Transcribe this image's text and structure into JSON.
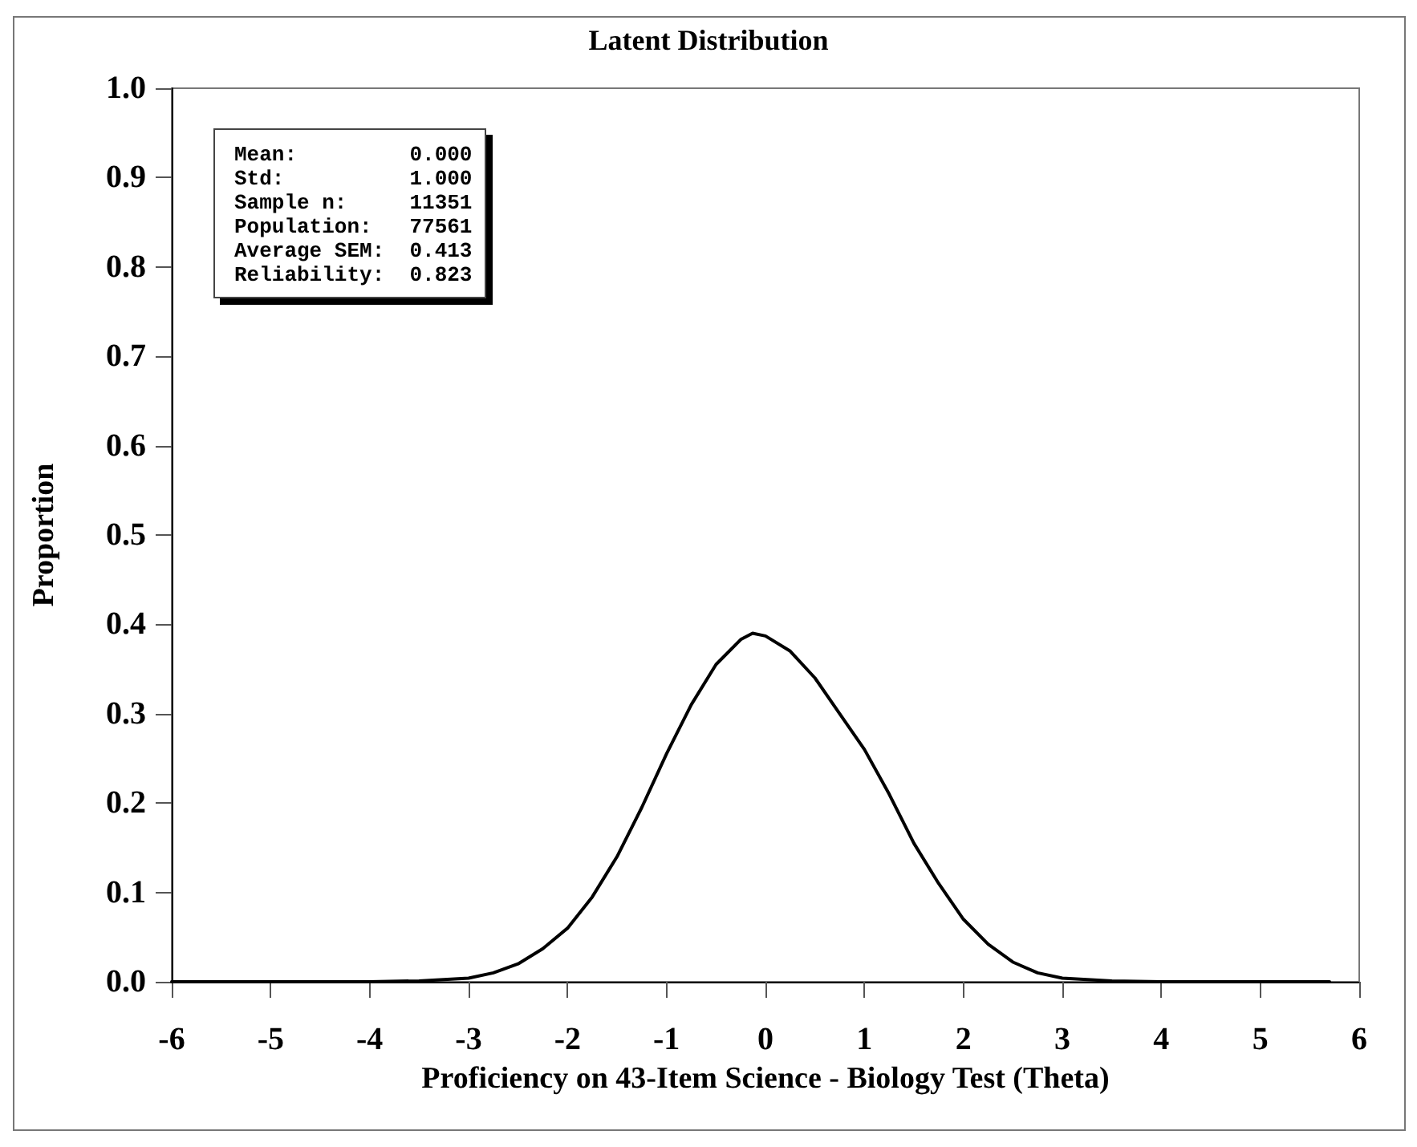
{
  "chart_data": {
    "type": "line",
    "title": "Latent Distribution",
    "xlabel": "Proficiency on 43-Item Science - Biology Test (Theta)",
    "ylabel": "Proportion",
    "annotations": [
      "Mean:         0.000",
      "Std:          1.000",
      "Sample n:     11351",
      "Population:   77561",
      "Average SEM:  0.413",
      "Reliability:  0.823"
    ],
    "x": [
      -6,
      -5,
      -4,
      -3.5,
      -3,
      -2.75,
      -2.5,
      -2.25,
      -2,
      -1.75,
      -1.5,
      -1.25,
      -1,
      -0.75,
      -0.5,
      -0.25,
      -0.13,
      0,
      0.25,
      0.5,
      0.75,
      1,
      1.25,
      1.5,
      1.75,
      2,
      2.25,
      2.5,
      2.75,
      3,
      3.5,
      4,
      5,
      5.7
    ],
    "series": [
      {
        "color": "#000000",
        "values": [
          0,
          0,
          0,
          0.001,
          0.004,
          0.01,
          0.02,
          0.037,
          0.06,
          0.095,
          0.14,
          0.195,
          0.255,
          0.31,
          0.355,
          0.383,
          0.39,
          0.387,
          0.37,
          0.34,
          0.3,
          0.26,
          0.21,
          0.155,
          0.11,
          0.07,
          0.042,
          0.022,
          0.01,
          0.004,
          0.001,
          0,
          0,
          0
        ]
      }
    ],
    "xlim": [
      -6,
      6
    ],
    "xticks": [
      -6,
      -5,
      -4,
      -3,
      -2,
      -1,
      0,
      1,
      2,
      3,
      4,
      5,
      6
    ],
    "ylim": [
      0,
      1
    ],
    "yticks": [
      {
        "value": 0,
        "label": "0.0"
      },
      {
        "value": 0.1,
        "label": "0.1"
      },
      {
        "value": 0.2,
        "label": "0.2"
      },
      {
        "value": 0.3,
        "label": "0.3"
      },
      {
        "value": 0.4,
        "label": "0.4"
      },
      {
        "value": 0.5,
        "label": "0.5"
      },
      {
        "value": 0.6,
        "label": "0.6"
      },
      {
        "value": 0.7,
        "label": "0.7"
      },
      {
        "value": 0.8,
        "label": "0.8"
      },
      {
        "value": 0.9,
        "label": "0.9"
      },
      {
        "value": 1,
        "label": "1.0"
      }
    ],
    "grid": false,
    "marker": "none",
    "line_style": "solid"
  }
}
